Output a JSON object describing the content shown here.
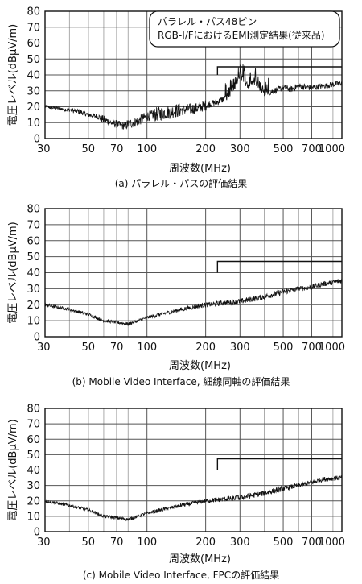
{
  "chart_data": [
    {
      "type": "line",
      "caption": "(a) パラレル・パスの評価結果",
      "xlabel": "周波数(MHz)",
      "ylabel": "電圧レベル(dBμV/m)",
      "xscale": "log",
      "xlim": [
        30,
        1000
      ],
      "ylim": [
        0,
        80
      ],
      "xticks": [
        30,
        50,
        70,
        100,
        200,
        300,
        500,
        700,
        1000
      ],
      "yticks": [
        0,
        10,
        20,
        30,
        40,
        50,
        60,
        70,
        80
      ],
      "annotation": [
        "パラレル・パス48ピン",
        "RGB-I/FにおけるEMI測定結果(従来品)"
      ],
      "limit_line": {
        "x_from": 230,
        "x_to": 1000,
        "y": 40
      },
      "series": [
        {
          "x": [
            30,
            35,
            40,
            45,
            50,
            55,
            60,
            65,
            70,
            75,
            80,
            90,
            100,
            120,
            150,
            180,
            200,
            230,
            260,
            280,
            300,
            330,
            360,
            400,
            450,
            500,
            550,
            600,
            700,
            800,
            900,
            1000
          ],
          "y": [
            20,
            19,
            18,
            17,
            15,
            14,
            12,
            10,
            9,
            8,
            9,
            11,
            14,
            16,
            18,
            19,
            21,
            23,
            26,
            30,
            40,
            33,
            36,
            28,
            30,
            32,
            31,
            33,
            32,
            33,
            34,
            35
          ]
        }
      ],
      "noise_amplitude": [
        1.2,
        1.6,
        2.5,
        3.2,
        4.5,
        3.5,
        2.2,
        2.2,
        2.0,
        2.0,
        1.8
      ]
    },
    {
      "type": "line",
      "caption": "(b) Mobile Video Interface, 細線同軸の評価結果",
      "xlabel": "周波数(MHz)",
      "ylabel": "電圧レベル(dBμV/m)",
      "xscale": "log",
      "xlim": [
        30,
        1000
      ],
      "ylim": [
        0,
        80
      ],
      "xticks": [
        30,
        50,
        70,
        100,
        200,
        300,
        500,
        700,
        1000
      ],
      "yticks": [
        0,
        10,
        20,
        30,
        40,
        50,
        60,
        70,
        80
      ],
      "limit_line": {
        "x_from": 230,
        "x_to": 1000,
        "y": 40
      },
      "series": [
        {
          "x": [
            30,
            40,
            50,
            60,
            70,
            80,
            90,
            100,
            150,
            200,
            300,
            400,
            500,
            600,
            700,
            800,
            1000
          ],
          "y": [
            20,
            17,
            14,
            10,
            9,
            8,
            10,
            12,
            17,
            20,
            22,
            25,
            28,
            30,
            31,
            33,
            35
          ]
        }
      ],
      "noise_amplitude": [
        1.0,
        1.0,
        1.0,
        1.0,
        1.2,
        1.4,
        1.6,
        1.8,
        1.8,
        1.6,
        1.6
      ]
    },
    {
      "type": "line",
      "caption": "(c) Mobile Video Interface, FPCの評価結果",
      "xlabel": "周波数(MHz)",
      "ylabel": "電圧レベル(dBμV/m)",
      "xscale": "log",
      "xlim": [
        30,
        1000
      ],
      "ylim": [
        0,
        80
      ],
      "xticks": [
        30,
        50,
        70,
        100,
        200,
        300,
        500,
        700,
        1000
      ],
      "yticks": [
        0,
        10,
        20,
        30,
        40,
        50,
        60,
        70,
        80
      ],
      "limit_line": {
        "x_from": 230,
        "x_to": 1000,
        "y": 40
      },
      "series": [
        {
          "x": [
            30,
            40,
            50,
            60,
            70,
            80,
            90,
            100,
            150,
            200,
            300,
            400,
            500,
            600,
            700,
            800,
            1000
          ],
          "y": [
            20,
            17,
            14,
            10,
            9,
            8,
            10,
            12,
            17,
            20,
            22,
            25,
            28,
            30,
            32,
            34,
            35
          ]
        }
      ],
      "noise_amplitude": [
        1.0,
        1.0,
        1.0,
        1.0,
        1.2,
        1.4,
        1.6,
        1.8,
        1.8,
        1.6,
        1.6
      ]
    }
  ]
}
